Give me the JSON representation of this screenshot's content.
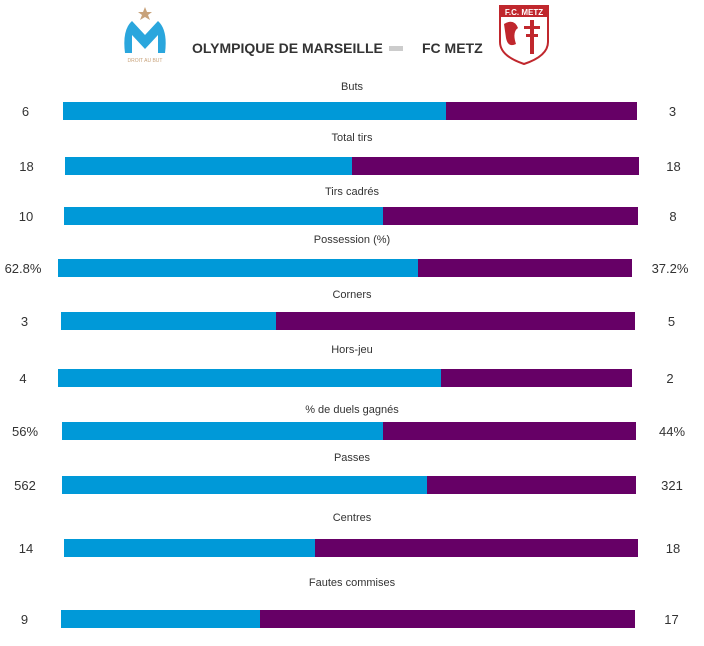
{
  "header": {
    "home_team": "OLYMPIQUE DE MARSEILLE",
    "away_team": "FC METZ",
    "home_logo_text": "DROIT AU BUT",
    "away_logo_text": "F.C. METZ"
  },
  "colors": {
    "home": "#0099d8",
    "away": "#660066"
  },
  "stats": [
    {
      "label": "Buts",
      "home": "6",
      "away": "3",
      "home_value": 6,
      "away_value": 3
    },
    {
      "label": "Total tirs",
      "home": "18",
      "away": "18",
      "home_value": 18,
      "away_value": 18
    },
    {
      "label": "Tirs cadrés",
      "home": "10",
      "away": "8",
      "home_value": 10,
      "away_value": 8
    },
    {
      "label": "Possession (%)",
      "home": "62.8%",
      "away": "37.2%",
      "home_value": 62.8,
      "away_value": 37.2
    },
    {
      "label": "Corners",
      "home": "3",
      "away": "5",
      "home_value": 3,
      "away_value": 5
    },
    {
      "label": "Hors-jeu",
      "home": "4",
      "away": "2",
      "home_value": 4,
      "away_value": 2
    },
    {
      "label": "% de duels gagnés",
      "home": "56%",
      "away": "44%",
      "home_value": 56,
      "away_value": 44
    },
    {
      "label": "Passes",
      "home": "562",
      "away": "321",
      "home_value": 562,
      "away_value": 321
    },
    {
      "label": "Centres",
      "home": "14",
      "away": "18",
      "home_value": 14,
      "away_value": 18
    },
    {
      "label": "Fautes commises",
      "home": "9",
      "away": "17",
      "home_value": 9,
      "away_value": 17
    }
  ]
}
